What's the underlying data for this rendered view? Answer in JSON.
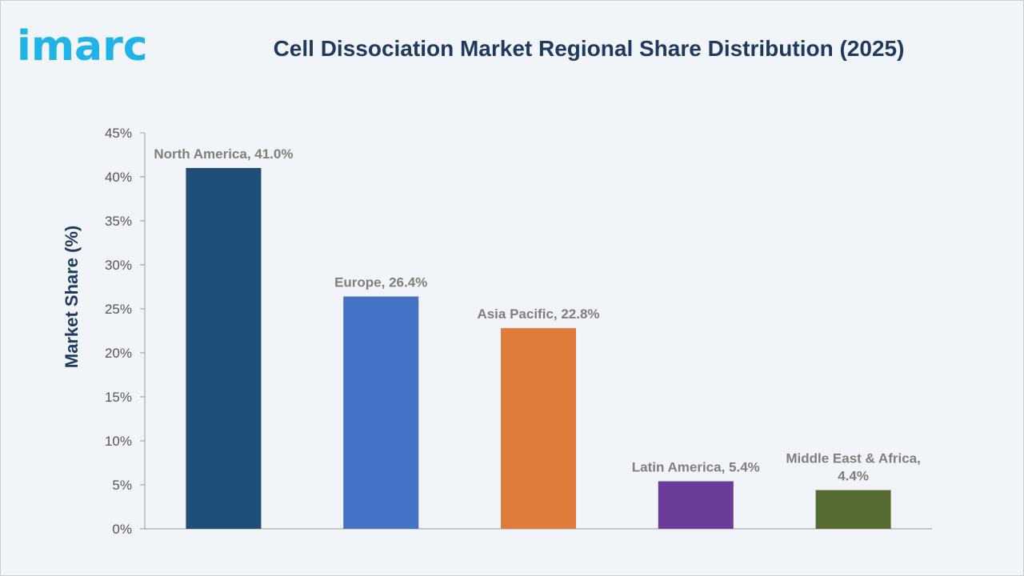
{
  "brand": {
    "logo_text": "imarc",
    "accent_color": "#1fb3e8"
  },
  "chart_data": {
    "type": "bar",
    "title": "Cell Dissociation Market Regional Share Distribution (2025)",
    "xlabel": "",
    "ylabel": "Market Share (%)",
    "ylim": [
      0,
      45
    ],
    "yticks": [
      0,
      5,
      10,
      15,
      20,
      25,
      30,
      35,
      40,
      45
    ],
    "ytick_labels": [
      "0%",
      "5%",
      "10%",
      "15%",
      "20%",
      "25%",
      "30%",
      "35%",
      "40%",
      "45%"
    ],
    "grid": false,
    "legend": "none",
    "categories": [
      "North America",
      "Europe",
      "Asia Pacific",
      "Latin America",
      "Middle East & Africa"
    ],
    "values": [
      41.0,
      26.4,
      22.8,
      5.4,
      4.4
    ],
    "data_labels": [
      [
        "North America, 41.0%"
      ],
      [
        "Europe, 26.4%"
      ],
      [
        "Asia Pacific, 22.8%"
      ],
      [
        "Latin America, 5.4%"
      ],
      [
        "Middle East & Africa,",
        "4.4%"
      ]
    ],
    "colors": [
      "#1f4e79",
      "#4472c4",
      "#e07b39",
      "#6a3d9a",
      "#556b2f"
    ]
  }
}
